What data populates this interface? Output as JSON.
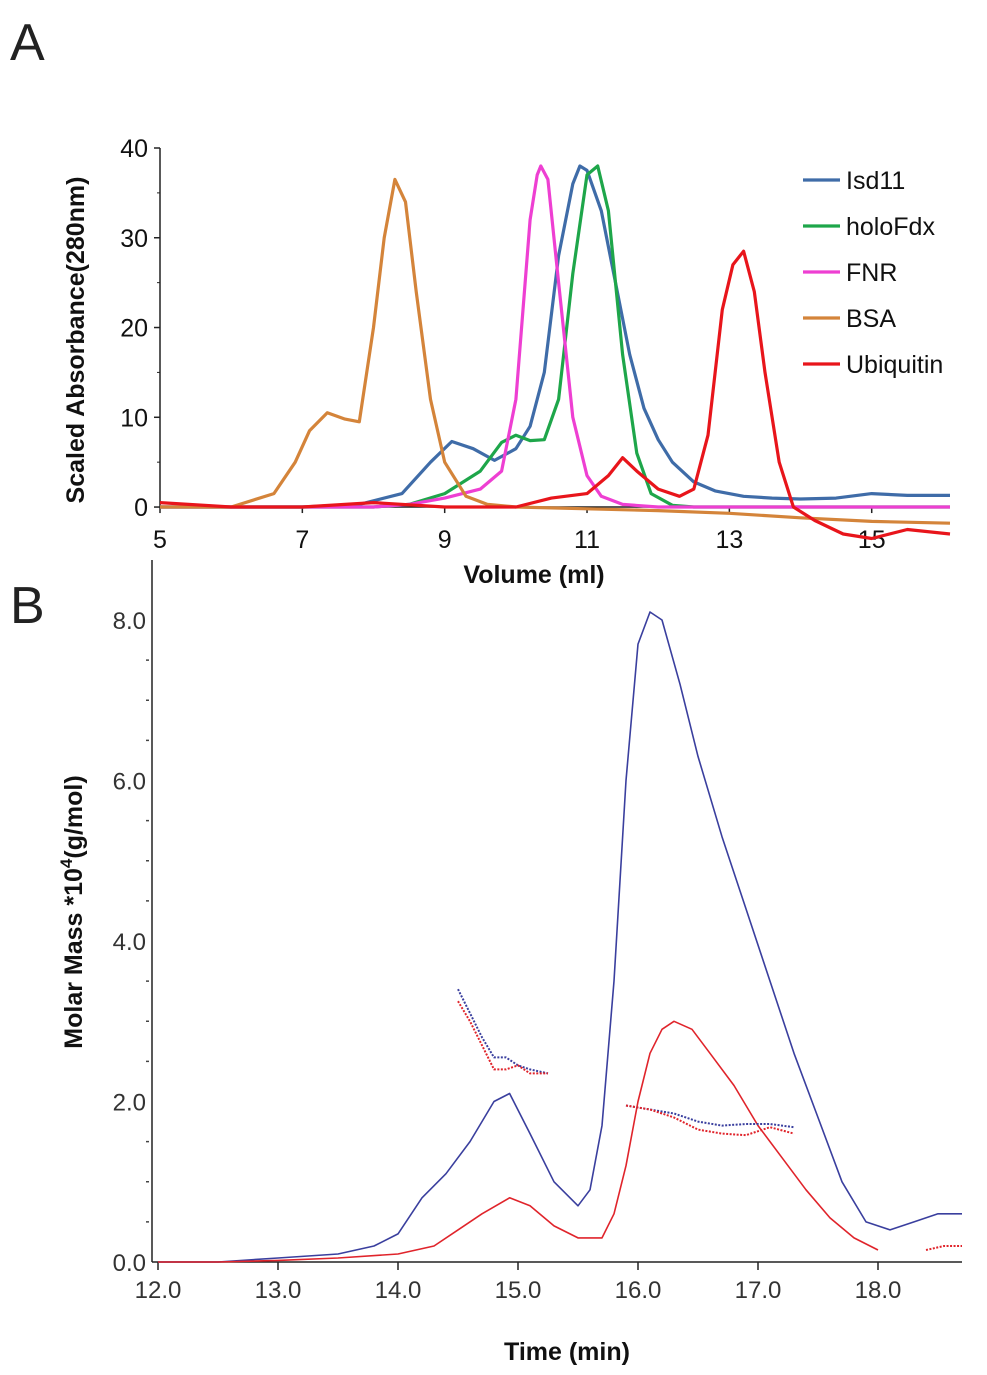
{
  "chart_data": [
    {
      "panel": "A",
      "type": "line",
      "xlabel": "Volume (ml)",
      "ylabel": "Scaled Absorbance(280nm)",
      "xlim": [
        5,
        16.1
      ],
      "ylim": [
        -2,
        40
      ],
      "xticks": [
        "5",
        "7",
        "9",
        "11",
        "13",
        "15"
      ],
      "yticks": [
        "0",
        "10",
        "20",
        "30",
        "40"
      ],
      "legend_position": "top-right",
      "series": [
        {
          "name": "Isd11",
          "color": "#3f6ca8",
          "x": [
            5,
            6,
            7,
            7.8,
            8.4,
            8.8,
            9.1,
            9.4,
            9.7,
            10.0,
            10.2,
            10.4,
            10.6,
            10.8,
            10.9,
            11.0,
            11.2,
            11.4,
            11.6,
            11.8,
            12.0,
            12.2,
            12.5,
            12.8,
            13.2,
            13.6,
            14.0,
            14.5,
            15.0,
            15.5,
            16.1
          ],
          "y": [
            0,
            0,
            0,
            0.3,
            1.5,
            5,
            7.3,
            6.5,
            5.2,
            6.5,
            9,
            15,
            28,
            36,
            38,
            37.5,
            33,
            25,
            17,
            11,
            7.5,
            5,
            2.8,
            1.8,
            1.2,
            1,
            0.9,
            1,
            1.5,
            1.3,
            1.3
          ]
        },
        {
          "name": "holoFdx",
          "color": "#1ea64a",
          "x": [
            5,
            7,
            8,
            8.5,
            9,
            9.5,
            9.8,
            10.0,
            10.2,
            10.4,
            10.6,
            10.8,
            11.0,
            11.15,
            11.3,
            11.5,
            11.7,
            11.9,
            12.2,
            12.5,
            16.1
          ],
          "y": [
            0,
            0,
            0,
            0.3,
            1.5,
            4,
            7.2,
            8,
            7.4,
            7.5,
            12,
            26,
            37,
            38,
            33,
            17,
            6,
            1.5,
            0.2,
            0,
            0
          ]
        },
        {
          "name": "FNR",
          "color": "#ee3fd2",
          "x": [
            5,
            7,
            8,
            8.5,
            9,
            9.5,
            9.8,
            10.0,
            10.1,
            10.2,
            10.3,
            10.35,
            10.45,
            10.6,
            10.8,
            11.0,
            11.2,
            11.5,
            12.0,
            16.1
          ],
          "y": [
            0,
            0,
            0,
            0.3,
            1,
            2,
            4,
            12,
            22,
            32,
            37,
            38,
            36.5,
            25,
            10,
            3.5,
            1.2,
            0.3,
            0,
            0
          ]
        },
        {
          "name": "BSA",
          "color": "#d4843a",
          "x": [
            5,
            6,
            6.6,
            6.9,
            7.1,
            7.35,
            7.6,
            7.8,
            8.0,
            8.15,
            8.3,
            8.45,
            8.6,
            8.8,
            9.0,
            9.3,
            9.6,
            10,
            11,
            12,
            13,
            14,
            15,
            16.1
          ],
          "y": [
            0,
            0,
            1.5,
            5,
            8.5,
            10.5,
            9.8,
            9.5,
            20,
            30,
            36.5,
            34,
            24,
            12,
            5,
            1.2,
            0.3,
            0,
            -0.2,
            -0.4,
            -0.7,
            -1.2,
            -1.6,
            -1.8
          ]
        },
        {
          "name": "Ubiquitin",
          "color": "#e8151b",
          "x": [
            5,
            6,
            7,
            8,
            9,
            10,
            10.5,
            11.0,
            11.3,
            11.5,
            11.7,
            12.0,
            12.3,
            12.5,
            12.7,
            12.9,
            13.05,
            13.2,
            13.35,
            13.5,
            13.7,
            13.9,
            14.2,
            14.6,
            15.0,
            15.5,
            16.1
          ],
          "y": [
            0.5,
            0,
            0,
            0.5,
            0,
            0,
            1,
            1.5,
            3.5,
            5.5,
            4,
            2,
            1.2,
            2,
            8,
            22,
            27,
            28.5,
            24,
            15,
            5,
            0,
            -1.5,
            -3,
            -3.5,
            -2.5,
            -3
          ]
        }
      ]
    },
    {
      "panel": "B",
      "type": "line",
      "xlabel": "Time (min)",
      "ylabel": "Molar Mass *10",
      "ylabel_superscript": "4",
      "ylabel_suffix": "(g/mol)",
      "xlim": [
        11.95,
        18.7
      ],
      "ylim": [
        0.0,
        8.0
      ],
      "xticks": [
        "12.0",
        "13.0",
        "14.0",
        "15.0",
        "16.0",
        "17.0",
        "18.0"
      ],
      "yticks": [
        "0.0",
        "2.0",
        "4.0",
        "6.0",
        "8.0"
      ],
      "series": [
        {
          "color": "#3a3f9e",
          "x": [
            12.0,
            12.5,
            13.0,
            13.5,
            13.8,
            14.0,
            14.2,
            14.4,
            14.6,
            14.8,
            14.93,
            15.1,
            15.3,
            15.5,
            15.6,
            15.7,
            15.8,
            15.9,
            16.0,
            16.1,
            16.2,
            16.35,
            16.5,
            16.7,
            16.9,
            17.1,
            17.3,
            17.5,
            17.7,
            17.9,
            18.1,
            18.3,
            18.5,
            18.7
          ],
          "y": [
            0.0,
            0.0,
            0.05,
            0.1,
            0.2,
            0.35,
            0.8,
            1.1,
            1.5,
            2.0,
            2.1,
            1.6,
            1.0,
            0.7,
            0.9,
            1.7,
            3.5,
            6.0,
            7.7,
            8.1,
            8.0,
            7.2,
            6.3,
            5.3,
            4.4,
            3.5,
            2.6,
            1.8,
            1.0,
            0.5,
            0.4,
            0.5,
            0.6,
            0.6
          ]
        },
        {
          "color": "#e0242b",
          "x": [
            12.0,
            12.5,
            13.0,
            13.5,
            14.0,
            14.3,
            14.5,
            14.7,
            14.93,
            15.1,
            15.3,
            15.5,
            15.7,
            15.8,
            15.9,
            16.0,
            16.1,
            16.2,
            16.3,
            16.45,
            16.6,
            16.8,
            17.0,
            17.2,
            17.4,
            17.6,
            17.8,
            18.0
          ],
          "y": [
            0.0,
            0.0,
            0.02,
            0.05,
            0.1,
            0.2,
            0.4,
            0.6,
            0.8,
            0.7,
            0.45,
            0.3,
            0.3,
            0.6,
            1.2,
            2.0,
            2.6,
            2.9,
            3.0,
            2.9,
            2.6,
            2.2,
            1.7,
            1.3,
            0.9,
            0.55,
            0.3,
            0.15
          ]
        },
        {
          "color": "#3a3f9e",
          "x": [
            14.5,
            14.6,
            14.7,
            14.8,
            14.9,
            15.0,
            15.1,
            15.25
          ],
          "y": [
            3.4,
            3.1,
            2.8,
            2.55,
            2.55,
            2.45,
            2.4,
            2.35
          ]
        },
        {
          "color": "#e0242b",
          "x": [
            14.5,
            14.6,
            14.7,
            14.8,
            14.9,
            15.0,
            15.1,
            15.25
          ],
          "y": [
            3.25,
            3.0,
            2.7,
            2.4,
            2.4,
            2.45,
            2.35,
            2.35
          ]
        },
        {
          "color": "#3a3f9e",
          "x": [
            15.9,
            16.1,
            16.3,
            16.5,
            16.7,
            16.9,
            17.1,
            17.3
          ],
          "y": [
            1.95,
            1.9,
            1.85,
            1.75,
            1.7,
            1.72,
            1.72,
            1.68
          ]
        },
        {
          "color": "#e0242b",
          "x": [
            15.9,
            16.1,
            16.3,
            16.5,
            16.7,
            16.9,
            17.1,
            17.3
          ],
          "y": [
            1.95,
            1.9,
            1.8,
            1.65,
            1.6,
            1.58,
            1.68,
            1.6
          ]
        },
        {
          "color": "#e0242b",
          "x": [
            18.4,
            18.55,
            18.7
          ],
          "y": [
            0.15,
            0.2,
            0.2
          ]
        }
      ]
    }
  ]
}
